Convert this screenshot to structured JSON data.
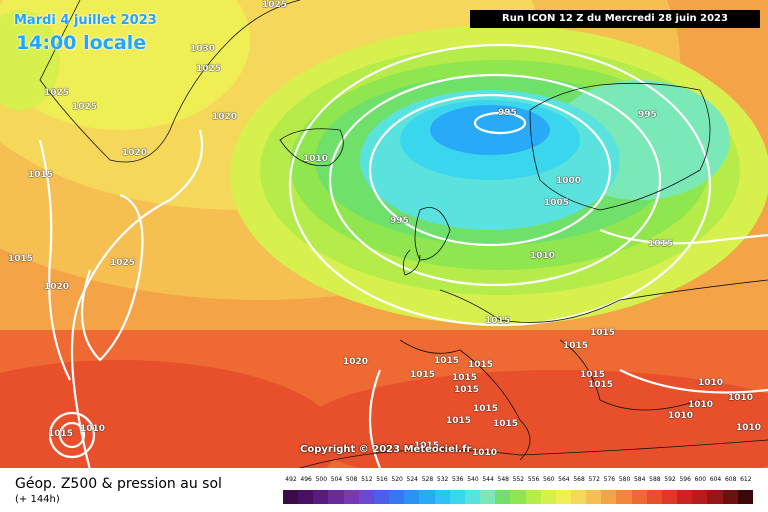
{
  "header": {
    "date": "Mardi 4 juillet 2023",
    "time": "14:00 locale",
    "run": "Run ICON 12 Z du Mercredi 28 juin 2023"
  },
  "copyright": "Copyright © 2023 Meteociel.fr",
  "footer": {
    "title": "Géop. Z500 & pression au sol",
    "subtitle": "(+ 144h)"
  },
  "legend_scale": {
    "ticks": [
      "492",
      "496",
      "500",
      "504",
      "508",
      "512",
      "516",
      "520",
      "524",
      "528",
      "532",
      "536",
      "540",
      "544",
      "548",
      "552",
      "556",
      "560",
      "564",
      "568",
      "572",
      "576",
      "580",
      "584",
      "588",
      "592",
      "596",
      "600",
      "604",
      "608",
      "612"
    ],
    "colors": [
      "#3b0b4a",
      "#4a0f63",
      "#5a1a80",
      "#6b2a9c",
      "#7a38b5",
      "#6a4ad0",
      "#4d5ee8",
      "#3578f0",
      "#2a92f5",
      "#28aaf8",
      "#2fc2f7",
      "#3ad6ee",
      "#5ae2df",
      "#7be8b8",
      "#6fe06a",
      "#8fe64e",
      "#b5ec4a",
      "#d7f04e",
      "#f0ee55",
      "#f5d75a",
      "#f6bf52",
      "#f4a447",
      "#f2863a",
      "#ee6a32",
      "#e84f2b",
      "#de3826",
      "#cc2222",
      "#b51d1d",
      "#951616",
      "#6e1010",
      "#3b0707"
    ]
  },
  "isobar_labels": [
    {
      "text": "1025"
    },
    {
      "text": "1030"
    },
    {
      "text": "1025"
    },
    {
      "text": "1025"
    },
    {
      "text": "1025"
    },
    {
      "text": "1020"
    },
    {
      "text": "1020"
    },
    {
      "text": "1015"
    },
    {
      "text": "1010"
    },
    {
      "text": "995"
    },
    {
      "text": "995"
    },
    {
      "text": "1000"
    },
    {
      "text": "1005"
    },
    {
      "text": "995"
    },
    {
      "text": "1010"
    },
    {
      "text": "1015"
    },
    {
      "text": "1025"
    },
    {
      "text": "1015"
    },
    {
      "text": "1020"
    },
    {
      "text": "1015"
    },
    {
      "text": "1015"
    },
    {
      "text": "1015"
    },
    {
      "text": "1015"
    },
    {
      "text": "1015"
    },
    {
      "text": "1015"
    },
    {
      "text": "1015"
    },
    {
      "text": "1015"
    },
    {
      "text": "1015"
    },
    {
      "text": "1015"
    },
    {
      "text": "1010"
    },
    {
      "text": "1010"
    },
    {
      "text": "1010"
    },
    {
      "text": "1010"
    },
    {
      "text": "1010"
    },
    {
      "text": "1020"
    },
    {
      "text": "1015"
    },
    {
      "text": "1010"
    },
    {
      "text": "1015"
    },
    {
      "text": "1015"
    },
    {
      "text": "1010"
    },
    {
      "text": "1015"
    },
    {
      "text": "1015"
    }
  ]
}
